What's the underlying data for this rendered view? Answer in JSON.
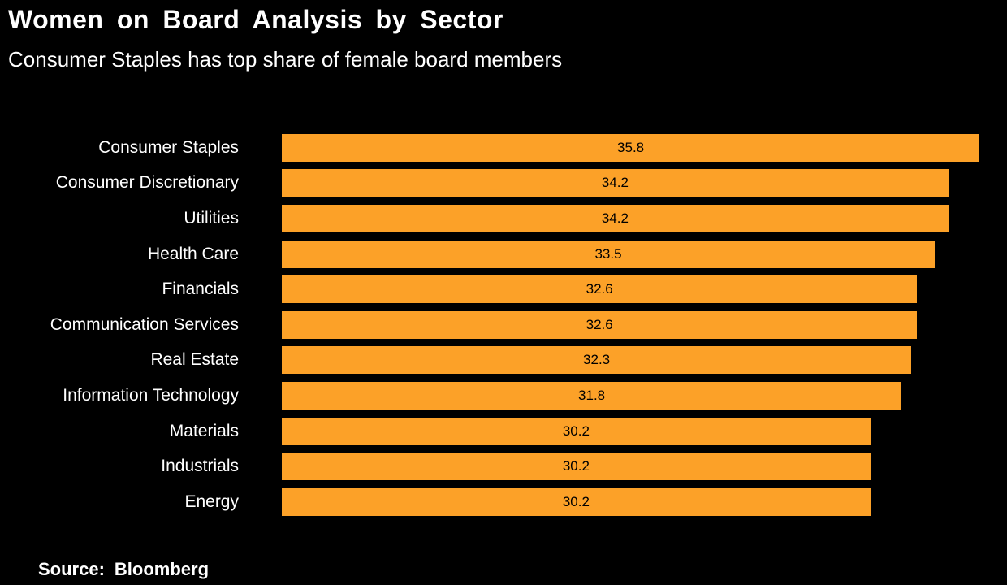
{
  "header": {
    "title": "Women on Board Analysis by Sector",
    "subtitle": "Consumer Staples has top share of female board members"
  },
  "chart_data": {
    "type": "bar",
    "orientation": "horizontal",
    "title": "Women on Board Analysis by Sector",
    "subtitle": "Consumer Staples has top share of female board members",
    "categories": [
      "Consumer Staples",
      "Consumer Discretionary",
      "Utilities",
      "Health Care",
      "Financials",
      "Communication Services",
      "Real Estate",
      "Information Technology",
      "Materials",
      "Industrials",
      "Energy"
    ],
    "values": [
      35.8,
      34.2,
      34.2,
      33.5,
      32.6,
      32.6,
      32.3,
      31.8,
      30.2,
      30.2,
      30.2
    ],
    "value_labels": [
      "35.8",
      "34.2",
      "34.2",
      "33.5",
      "32.6",
      "32.6",
      "32.3",
      "31.8",
      "30.2",
      "30.2",
      "30.2"
    ],
    "xlim": [
      0,
      37.2
    ],
    "grid": false,
    "legend": false,
    "axis_shown": false,
    "bar_color": "#FCA128",
    "value_label_color": "#000000",
    "category_label_color": "#FFFFFF",
    "background_color": "#000000"
  },
  "footer": {
    "source_label": "Source:",
    "source_value": "Bloomberg"
  }
}
